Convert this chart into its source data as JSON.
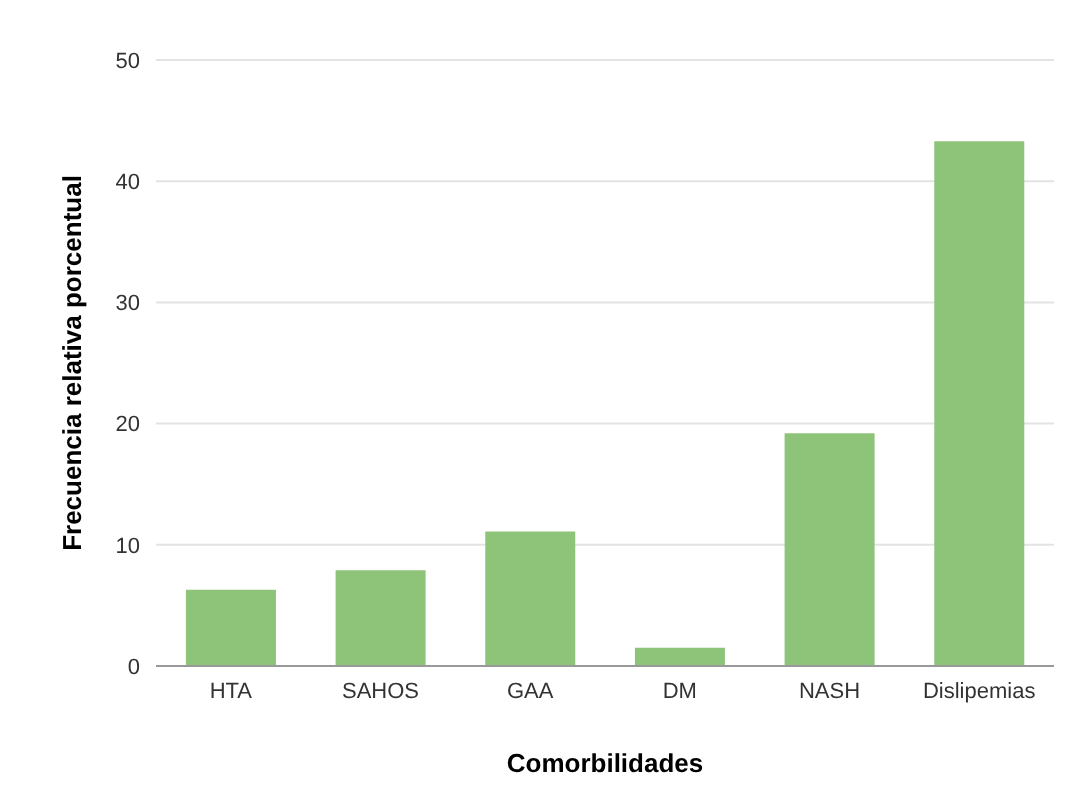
{
  "chart_data": {
    "type": "bar",
    "xlabel": "Comorbilidades",
    "ylabel": "Frecuencia relativa porcentual",
    "categories": [
      "HTA",
      "SAHOS",
      "GAA",
      "DM",
      "NASH",
      "Dislipemias"
    ],
    "values": [
      6.3,
      7.9,
      11.1,
      1.5,
      19.2,
      43.3
    ],
    "color": "#8dc47a",
    "ylim": [
      0,
      50
    ],
    "yticks": [
      0,
      10,
      20,
      30,
      40,
      50
    ],
    "grid": "y"
  }
}
